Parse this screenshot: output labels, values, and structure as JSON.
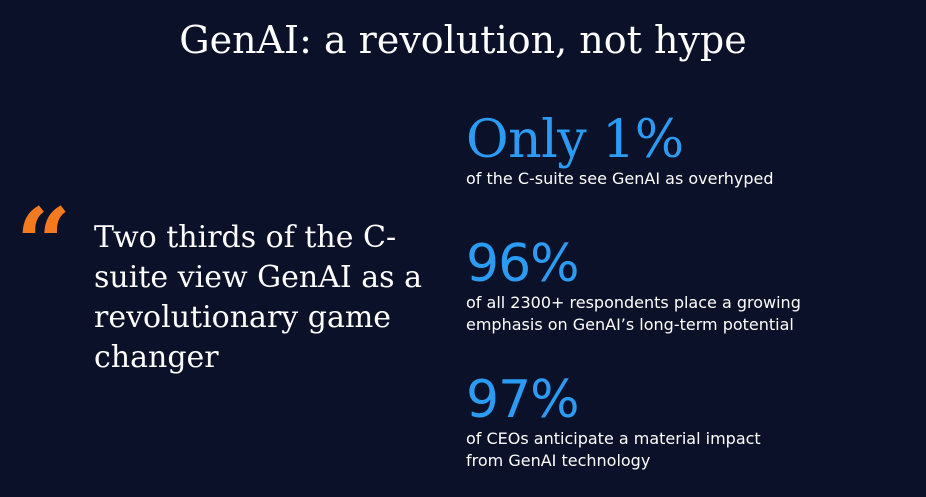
{
  "slide": {
    "title": "GenAI: a revolution, not hype",
    "colors": {
      "background": "#0a1128",
      "accent_blue": "#2b9bf4",
      "accent_orange": "#f47a1f",
      "text": "#ffffff"
    }
  },
  "quote": {
    "mark": "“",
    "text": "Two thirds of the C-suite view GenAI as a revolutionary game changer"
  },
  "stats": [
    {
      "value": "Only 1%",
      "description": "of the C-suite see GenAI as overhyped"
    },
    {
      "value": "96%",
      "description": "of all 2300+ respondents place a growing\nemphasis on GenAI’s long-term potential"
    },
    {
      "value": "97%",
      "description": "of CEOs anticipate a material impact\nfrom GenAI technology"
    }
  ]
}
